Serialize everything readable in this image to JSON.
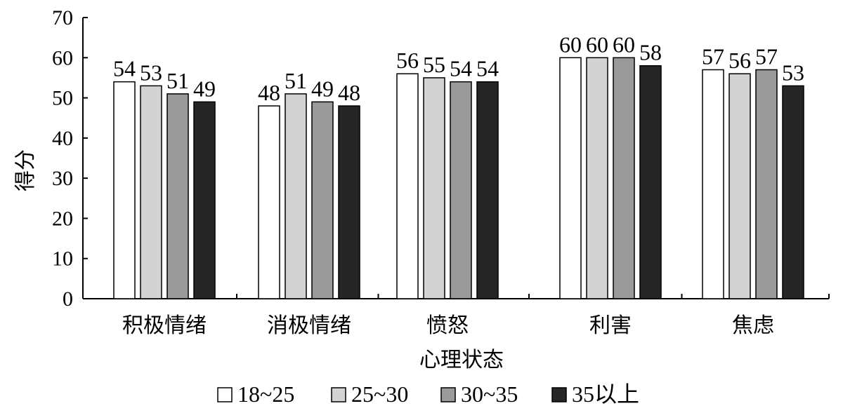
{
  "chart_data": {
    "type": "bar",
    "title": "",
    "xlabel": "心理状态",
    "ylabel": "得分",
    "ylim": [
      0,
      70
    ],
    "yticks": [
      0,
      10,
      20,
      30,
      40,
      50,
      60,
      70
    ],
    "grid": false,
    "legend_position": "bottom",
    "categories": [
      "积极情绪",
      "消极情绪",
      "愤怒",
      "利害",
      "焦虑"
    ],
    "series": [
      {
        "name": "18~25",
        "color": "#ffffff",
        "values": [
          54,
          48,
          56,
          60,
          57
        ]
      },
      {
        "name": "25~30",
        "color": "#d3d3d3",
        "values": [
          53,
          51,
          55,
          60,
          56
        ]
      },
      {
        "name": "30~35",
        "color": "#9a9a9a",
        "values": [
          51,
          49,
          54,
          60,
          57
        ]
      },
      {
        "name": "35以上",
        "color": "#262626",
        "values": [
          49,
          48,
          54,
          58,
          53
        ]
      }
    ],
    "data_labels": [
      [
        "54",
        "48",
        "56",
        "60",
        "57"
      ],
      [
        "53",
        "51",
        "55",
        "60",
        "56"
      ],
      [
        "51",
        "49",
        "54",
        "60",
        "57"
      ],
      [
        "49",
        "48",
        "54",
        "58",
        "53"
      ]
    ]
  }
}
